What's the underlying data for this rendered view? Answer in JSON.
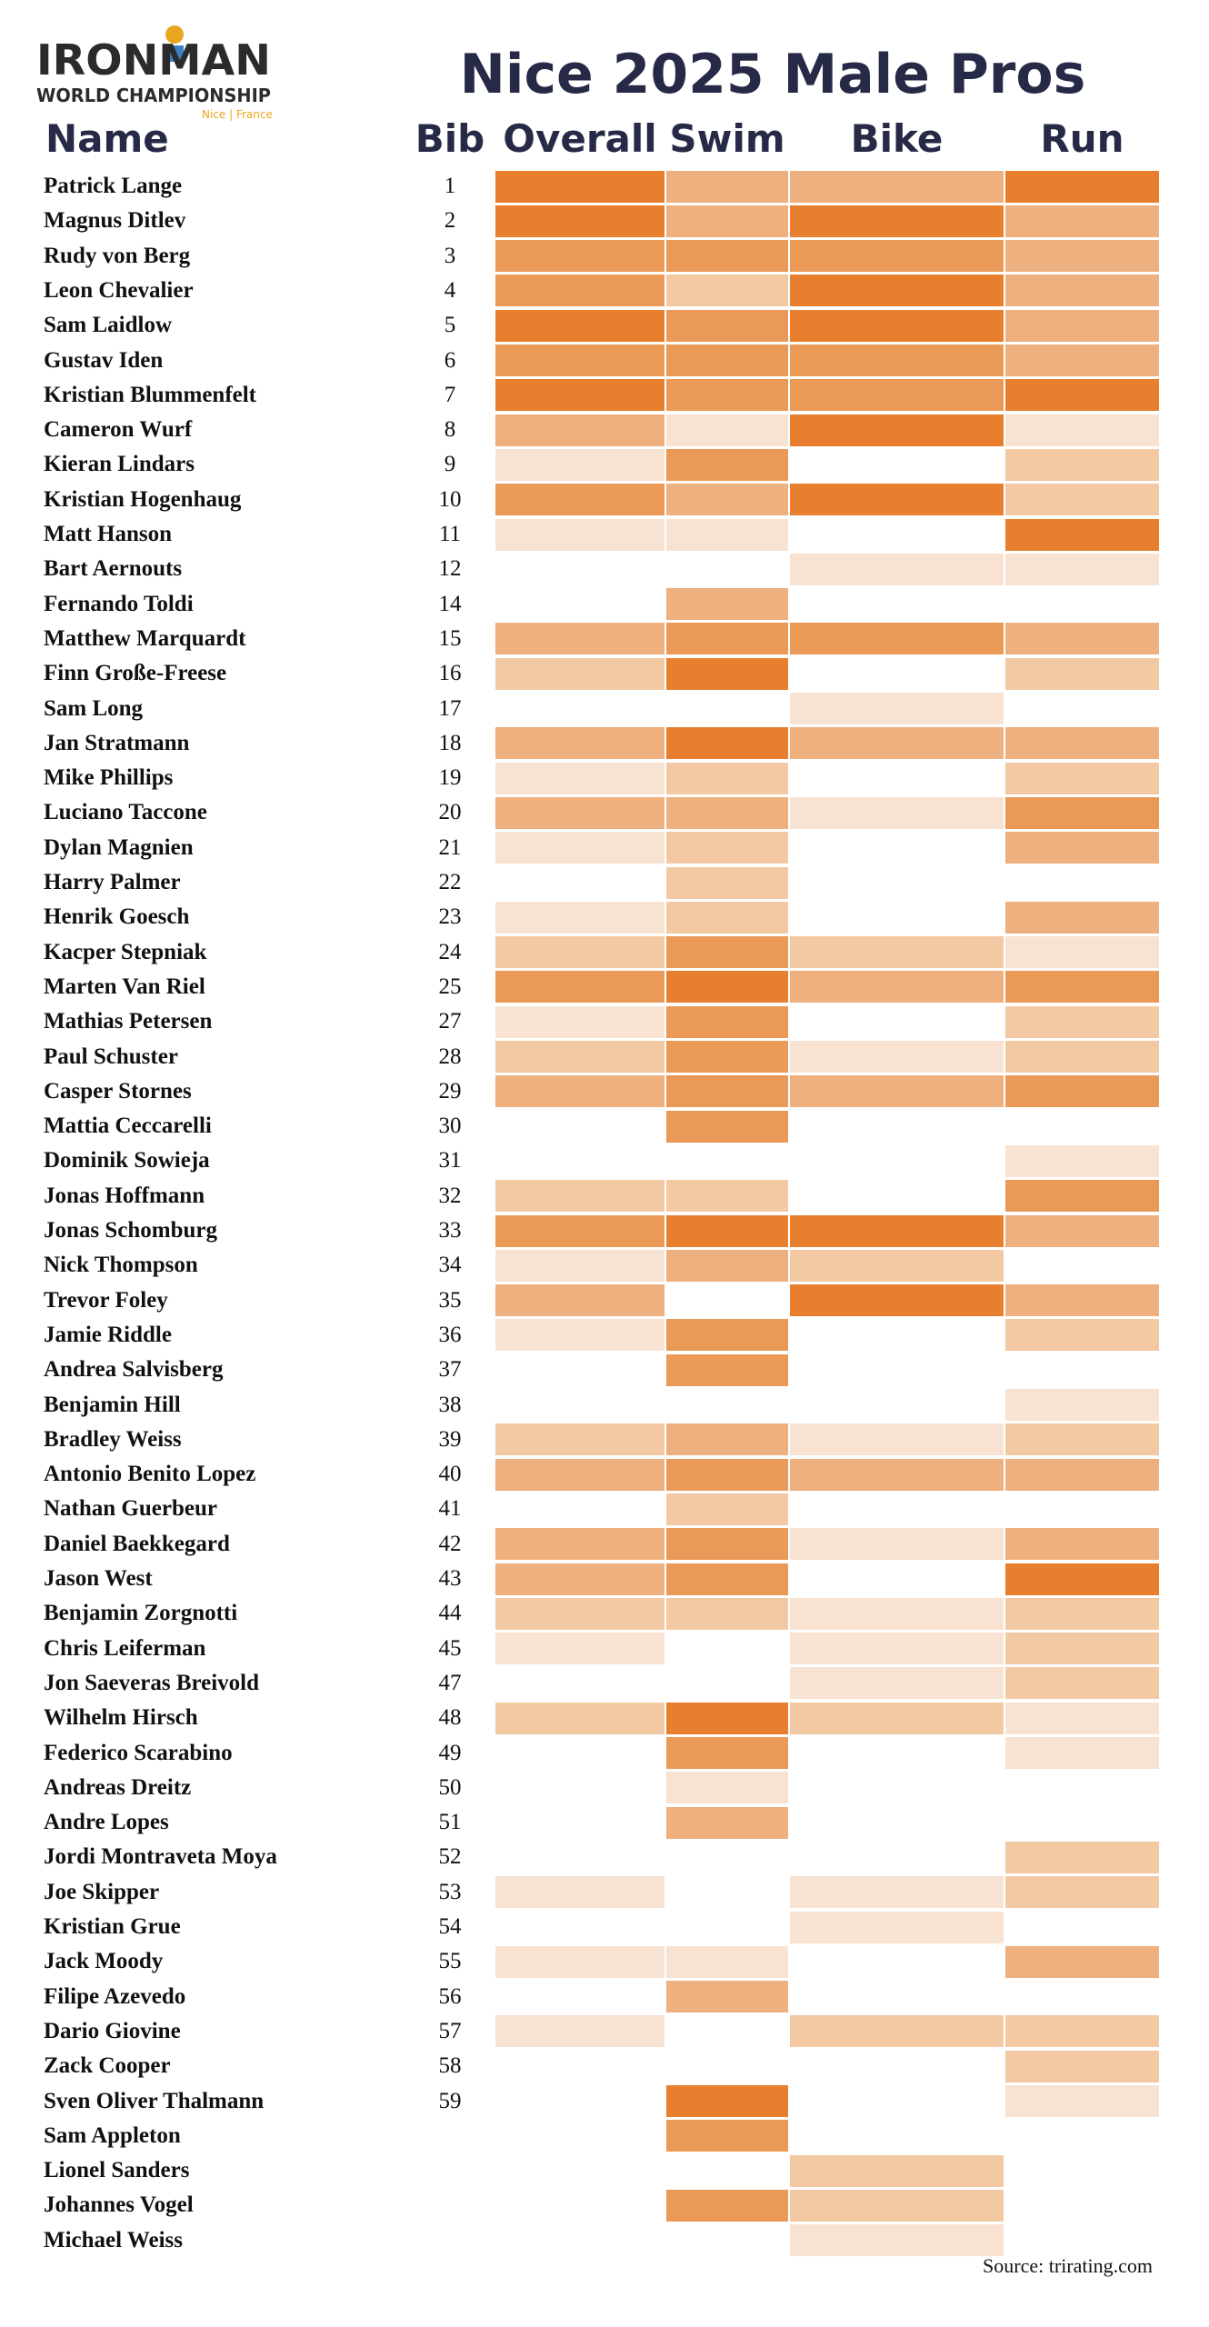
{
  "logo": {
    "brand": "IRONMAN",
    "line2": "WORLD CHAMPIONSHIP",
    "location": "Nice | France"
  },
  "source": "Source: trirating.com",
  "colors": {
    "heading": "#272a47",
    "level0": "#ffffff",
    "level1": "#f8e3d3",
    "level2": "#f3c9a3",
    "level3": "#eeb07e",
    "level4": "#ea9a56",
    "level5": "#e77f2f"
  },
  "chart_data": {
    "type": "heatmap",
    "title": "Nice 2025 Male Pros",
    "headers": {
      "name": "Name",
      "bib": "Bib",
      "overall": "Overall",
      "swim": "Swim",
      "bike": "Bike",
      "run": "Run"
    },
    "scale_note": "levels 0-5, 0 = blank, 5 = darkest orange",
    "rows": [
      {
        "name": "Patrick Lange",
        "bib": "1",
        "overall": 5,
        "swim": 3,
        "bike": 3,
        "run": 5
      },
      {
        "name": "Magnus Ditlev",
        "bib": "2",
        "overall": 5,
        "swim": 3,
        "bike": 5,
        "run": 3
      },
      {
        "name": "Rudy von Berg",
        "bib": "3",
        "overall": 4,
        "swim": 4,
        "bike": 4,
        "run": 3
      },
      {
        "name": "Leon Chevalier",
        "bib": "4",
        "overall": 4,
        "swim": 2,
        "bike": 5,
        "run": 3
      },
      {
        "name": "Sam Laidlow",
        "bib": "5",
        "overall": 5,
        "swim": 4,
        "bike": 5,
        "run": 3
      },
      {
        "name": "Gustav Iden",
        "bib": "6",
        "overall": 4,
        "swim": 4,
        "bike": 4,
        "run": 3
      },
      {
        "name": "Kristian Blummenfelt",
        "bib": "7",
        "overall": 5,
        "swim": 4,
        "bike": 4,
        "run": 5
      },
      {
        "name": "Cameron Wurf",
        "bib": "8",
        "overall": 3,
        "swim": 1,
        "bike": 5,
        "run": 1
      },
      {
        "name": "Kieran Lindars",
        "bib": "9",
        "overall": 1,
        "swim": 4,
        "bike": 0,
        "run": 2
      },
      {
        "name": "Kristian Hogenhaug",
        "bib": "10",
        "overall": 4,
        "swim": 3,
        "bike": 5,
        "run": 2
      },
      {
        "name": "Matt Hanson",
        "bib": "11",
        "overall": 1,
        "swim": 1,
        "bike": 0,
        "run": 5
      },
      {
        "name": "Bart Aernouts",
        "bib": "12",
        "overall": 0,
        "swim": 0,
        "bike": 1,
        "run": 1
      },
      {
        "name": "Fernando Toldi",
        "bib": "14",
        "overall": 0,
        "swim": 3,
        "bike": 0,
        "run": 0
      },
      {
        "name": "Matthew Marquardt",
        "bib": "15",
        "overall": 3,
        "swim": 4,
        "bike": 4,
        "run": 3
      },
      {
        "name": "Finn Große-Freese",
        "bib": "16",
        "overall": 2,
        "swim": 5,
        "bike": 0,
        "run": 2
      },
      {
        "name": "Sam Long",
        "bib": "17",
        "overall": 0,
        "swim": 0,
        "bike": 1,
        "run": 0
      },
      {
        "name": "Jan Stratmann",
        "bib": "18",
        "overall": 3,
        "swim": 5,
        "bike": 3,
        "run": 3
      },
      {
        "name": "Mike Phillips",
        "bib": "19",
        "overall": 1,
        "swim": 2,
        "bike": 0,
        "run": 2
      },
      {
        "name": "Luciano Taccone",
        "bib": "20",
        "overall": 3,
        "swim": 3,
        "bike": 1,
        "run": 4
      },
      {
        "name": "Dylan Magnien",
        "bib": "21",
        "overall": 1,
        "swim": 2,
        "bike": 0,
        "run": 3
      },
      {
        "name": "Harry Palmer",
        "bib": "22",
        "overall": 0,
        "swim": 2,
        "bike": 0,
        "run": 0
      },
      {
        "name": "Henrik Goesch",
        "bib": "23",
        "overall": 1,
        "swim": 2,
        "bike": 0,
        "run": 3
      },
      {
        "name": "Kacper Stepniak",
        "bib": "24",
        "overall": 2,
        "swim": 4,
        "bike": 2,
        "run": 1
      },
      {
        "name": "Marten Van Riel",
        "bib": "25",
        "overall": 4,
        "swim": 5,
        "bike": 3,
        "run": 4
      },
      {
        "name": "Mathias Petersen",
        "bib": "27",
        "overall": 1,
        "swim": 4,
        "bike": 0,
        "run": 2
      },
      {
        "name": "Paul Schuster",
        "bib": "28",
        "overall": 2,
        "swim": 4,
        "bike": 1,
        "run": 2
      },
      {
        "name": "Casper Stornes",
        "bib": "29",
        "overall": 3,
        "swim": 4,
        "bike": 3,
        "run": 4
      },
      {
        "name": "Mattia Ceccarelli",
        "bib": "30",
        "overall": 0,
        "swim": 4,
        "bike": 0,
        "run": 0
      },
      {
        "name": "Dominik Sowieja",
        "bib": "31",
        "overall": 0,
        "swim": 0,
        "bike": 0,
        "run": 1
      },
      {
        "name": "Jonas Hoffmann",
        "bib": "32",
        "overall": 2,
        "swim": 2,
        "bike": 0,
        "run": 4
      },
      {
        "name": "Jonas Schomburg",
        "bib": "33",
        "overall": 4,
        "swim": 5,
        "bike": 5,
        "run": 3
      },
      {
        "name": "Nick Thompson",
        "bib": "34",
        "overall": 1,
        "swim": 3,
        "bike": 2,
        "run": 0
      },
      {
        "name": "Trevor Foley",
        "bib": "35",
        "overall": 3,
        "swim": 0,
        "bike": 5,
        "run": 3
      },
      {
        "name": "Jamie Riddle",
        "bib": "36",
        "overall": 1,
        "swim": 4,
        "bike": 0,
        "run": 2
      },
      {
        "name": "Andrea Salvisberg",
        "bib": "37",
        "overall": 0,
        "swim": 4,
        "bike": 0,
        "run": 0
      },
      {
        "name": "Benjamin Hill",
        "bib": "38",
        "overall": 0,
        "swim": 0,
        "bike": 0,
        "run": 1
      },
      {
        "name": "Bradley Weiss",
        "bib": "39",
        "overall": 2,
        "swim": 3,
        "bike": 1,
        "run": 2
      },
      {
        "name": "Antonio Benito Lopez",
        "bib": "40",
        "overall": 3,
        "swim": 4,
        "bike": 3,
        "run": 3
      },
      {
        "name": "Nathan Guerbeur",
        "bib": "41",
        "overall": 0,
        "swim": 2,
        "bike": 0,
        "run": 0
      },
      {
        "name": "Daniel Baekkegard",
        "bib": "42",
        "overall": 3,
        "swim": 4,
        "bike": 1,
        "run": 3
      },
      {
        "name": "Jason West",
        "bib": "43",
        "overall": 3,
        "swim": 4,
        "bike": 0,
        "run": 5
      },
      {
        "name": "Benjamin Zorgnotti",
        "bib": "44",
        "overall": 2,
        "swim": 2,
        "bike": 1,
        "run": 2
      },
      {
        "name": "Chris Leiferman",
        "bib": "45",
        "overall": 1,
        "swim": 0,
        "bike": 1,
        "run": 2
      },
      {
        "name": "Jon Saeveras Breivold",
        "bib": "47",
        "overall": 0,
        "swim": 0,
        "bike": 1,
        "run": 2
      },
      {
        "name": "Wilhelm Hirsch",
        "bib": "48",
        "overall": 2,
        "swim": 5,
        "bike": 2,
        "run": 1
      },
      {
        "name": "Federico Scarabino",
        "bib": "49",
        "overall": 0,
        "swim": 4,
        "bike": 0,
        "run": 1
      },
      {
        "name": "Andreas Dreitz",
        "bib": "50",
        "overall": 0,
        "swim": 1,
        "bike": 0,
        "run": 0
      },
      {
        "name": "Andre Lopes",
        "bib": "51",
        "overall": 0,
        "swim": 3,
        "bike": 0,
        "run": 0
      },
      {
        "name": "Jordi Montraveta Moya",
        "bib": "52",
        "overall": 0,
        "swim": 0,
        "bike": 0,
        "run": 2
      },
      {
        "name": "Joe Skipper",
        "bib": "53",
        "overall": 1,
        "swim": 0,
        "bike": 1,
        "run": 2
      },
      {
        "name": "Kristian Grue",
        "bib": "54",
        "overall": 0,
        "swim": 0,
        "bike": 1,
        "run": 0
      },
      {
        "name": "Jack Moody",
        "bib": "55",
        "overall": 1,
        "swim": 1,
        "bike": 0,
        "run": 3
      },
      {
        "name": "Filipe Azevedo",
        "bib": "56",
        "overall": 0,
        "swim": 3,
        "bike": 0,
        "run": 0
      },
      {
        "name": "Dario Giovine",
        "bib": "57",
        "overall": 1,
        "swim": 0,
        "bike": 2,
        "run": 2
      },
      {
        "name": "Zack Cooper",
        "bib": "58",
        "overall": 0,
        "swim": 0,
        "bike": 0,
        "run": 2
      },
      {
        "name": "Sven Oliver Thalmann",
        "bib": "59",
        "overall": 0,
        "swim": 5,
        "bike": 0,
        "run": 1
      },
      {
        "name": "Sam Appleton",
        "bib": "",
        "overall": 0,
        "swim": 4,
        "bike": 0,
        "run": 0
      },
      {
        "name": "Lionel Sanders",
        "bib": "",
        "overall": 0,
        "swim": 0,
        "bike": 2,
        "run": 0
      },
      {
        "name": "Johannes Vogel",
        "bib": "",
        "overall": 0,
        "swim": 4,
        "bike": 2,
        "run": 0
      },
      {
        "name": "Michael Weiss",
        "bib": "",
        "overall": 0,
        "swim": 0,
        "bike": 1,
        "run": 0
      }
    ]
  }
}
